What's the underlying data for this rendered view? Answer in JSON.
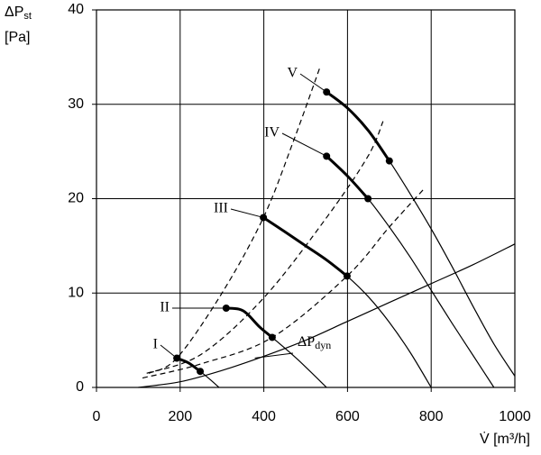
{
  "chart_data": {
    "type": "line",
    "y_label": {
      "main": "ΔP",
      "sub": "st",
      "unit": "[Pa]"
    },
    "x_label": "V̇ [m³/h]",
    "xlim": [
      0,
      1000
    ],
    "xticks": [
      0,
      200,
      400,
      600,
      800,
      1000
    ],
    "ylim": [
      0,
      40
    ],
    "yticks": [
      0,
      10,
      20,
      30,
      40
    ],
    "grid": true,
    "color": "#000000",
    "fan_curves": [
      {
        "name": "I",
        "x": [
          192,
          220,
          248,
          270,
          293
        ],
        "y": [
          3.1,
          2.6,
          1.7,
          0.9,
          0
        ],
        "marker_x": [
          192,
          248
        ],
        "marker_y": [
          3.1,
          1.7
        ]
      },
      {
        "name": "II",
        "x": [
          310,
          340,
          360,
          390,
          420,
          480,
          550
        ],
        "y": [
          8.4,
          8.3,
          7.8,
          6.4,
          5.3,
          3.0,
          0
        ],
        "marker_x": [
          310,
          420
        ],
        "marker_y": [
          8.4,
          5.3
        ]
      },
      {
        "name": "III",
        "x": [
          399,
          450,
          500,
          550,
          599,
          650,
          700,
          750,
          800
        ],
        "y": [
          18,
          16.5,
          15,
          13.5,
          11.8,
          9.6,
          6.9,
          3.7,
          0
        ],
        "marker_x": [
          399,
          599
        ],
        "marker_y": [
          18,
          11.8
        ]
      },
      {
        "name": "IV",
        "x": [
          550,
          600,
          649,
          700,
          750,
          800,
          850,
          900,
          950
        ],
        "y": [
          24.5,
          22.4,
          20,
          17,
          13.8,
          10.3,
          6.8,
          3.4,
          0
        ],
        "marker_x": [
          550,
          649
        ],
        "marker_y": [
          24.5,
          20
        ]
      },
      {
        "name": "V",
        "x": [
          550,
          600,
          650,
          700,
          750,
          800,
          850,
          900,
          950,
          1000
        ],
        "y": [
          31.3,
          29.6,
          27.2,
          24,
          20.5,
          16.8,
          12.8,
          8.6,
          4.6,
          1.2
        ],
        "marker_x": [
          550,
          700
        ],
        "marker_y": [
          31.3,
          24
        ]
      }
    ],
    "system_curves": [
      {
        "x": [
          125,
          192,
          300,
          399,
          470,
          534
        ],
        "y": [
          1.5,
          3.1,
          10,
          18,
          26,
          33.9
        ]
      },
      {
        "x": [
          120,
          250,
          400,
          550,
          649,
          685
        ],
        "y": [
          1.5,
          3.5,
          9.5,
          18,
          24.5,
          28.2
        ]
      },
      {
        "x": [
          110,
          250,
          420,
          599,
          700,
          782
        ],
        "y": [
          1,
          2.5,
          5.3,
          11.8,
          17,
          21
        ]
      }
    ],
    "dynamic_pressure": {
      "label": {
        "main": "ΔP",
        "sub": "dyn"
      },
      "x": [
        100,
        200,
        300,
        400,
        500,
        600,
        700,
        800,
        900,
        1000
      ],
      "y": [
        0,
        0.6,
        1.8,
        3.3,
        5,
        7,
        9,
        11,
        13,
        15.2
      ]
    }
  }
}
